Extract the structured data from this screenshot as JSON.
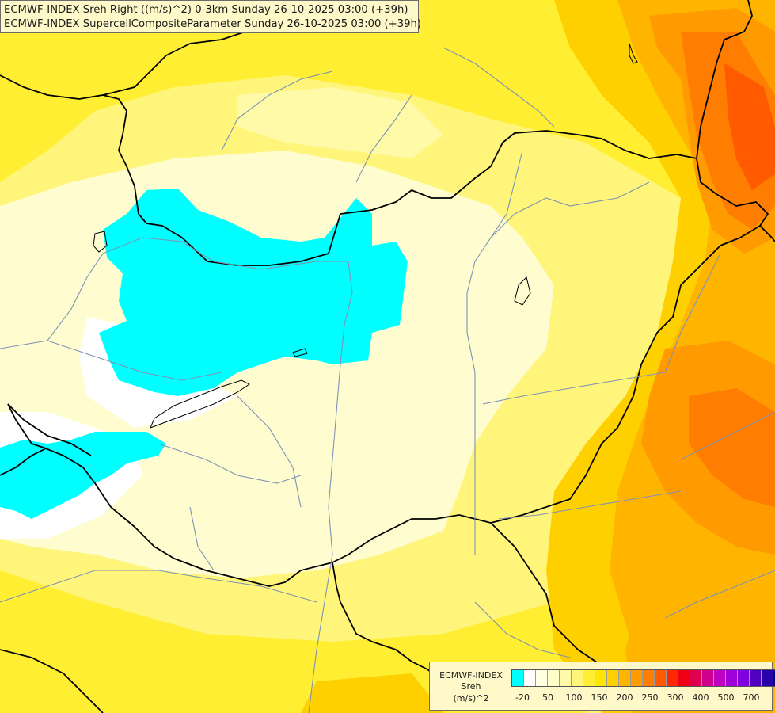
{
  "header": {
    "line1": "ECMWF-INDEX Sreh Right ((m/s)^2) 0-3km Sunday 26-10-2025 03:00 (+39h)",
    "line2": "ECMWF-INDEX SupercellCompositeParameter Sunday 26-10-2025 03:00 (+39h)"
  },
  "legend": {
    "title": "ECMWF-INDEX",
    "variable": "Sreh",
    "unit": "(m/s)^2",
    "colors": [
      "#00ffff",
      "#ffffff",
      "#ffffe1",
      "#ffffc8",
      "#fffaa8",
      "#fff57a",
      "#ffee32",
      "#ffe600",
      "#ffd000",
      "#ffb400",
      "#ff9a00",
      "#ff7d00",
      "#ff5a00",
      "#ff2800",
      "#f00014",
      "#e00050",
      "#d0008c",
      "#c000c0",
      "#a000d8",
      "#8000e0",
      "#5000c0",
      "#2800a8",
      "#000080"
    ],
    "ticks": [
      "-20",
      "50",
      "100",
      "150",
      "200",
      "250",
      "300",
      "400",
      "500",
      "700"
    ]
  },
  "map": {
    "fill_colors": {
      "low_cyan": "#00ffff",
      "white": "#ffffff",
      "pale": "#fffdd0",
      "light_yellow": "#fffaa8",
      "yellow": "#ffee32",
      "bright_yellow": "#ffe600",
      "gold": "#ffd000",
      "orange": "#ffb400",
      "dark_orange": "#ff9a00",
      "red_orange": "#ff7d00",
      "deep_orange": "#ff5a00"
    },
    "border_color": "#000000",
    "river_color": "#7d93b4"
  }
}
